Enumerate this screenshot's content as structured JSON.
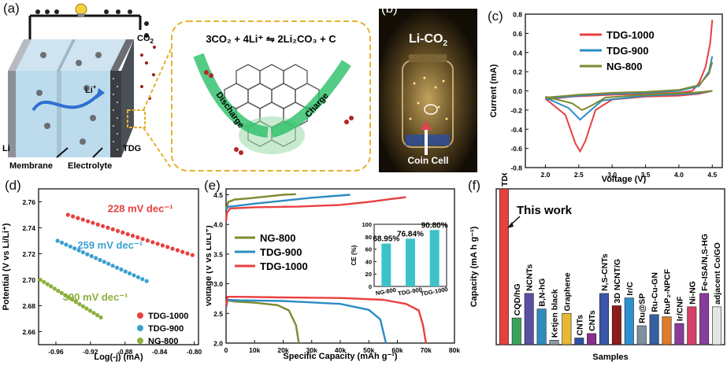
{
  "panels": {
    "a": {
      "label": "(a)",
      "labels": {
        "co2": "CO",
        "co2_sub": "2",
        "li_plus": "Li",
        "li_plus_sup": "+",
        "li": "Li",
        "tdg": "TDG",
        "membrane": "Membrane",
        "electrolyte": "Electrolyte"
      },
      "equation": "3CO₂ + 4Li⁺ ⇋ 2Li₂CO₃ + C",
      "discharge": "Discharge",
      "charge": "Charge"
    },
    "b": {
      "label": "(b)",
      "title": "Li-CO",
      "title_sub": "2",
      "caption": "Coin Cell"
    },
    "c": {
      "label": "(c)"
    },
    "d": {
      "label": "(d)"
    },
    "e": {
      "label": "(e)"
    },
    "f": {
      "label": "(f)"
    }
  },
  "chart_data": [
    {
      "id": "c",
      "type": "line",
      "title": "",
      "xlabel": "Voltage (V)",
      "ylabel": "Current (mA)",
      "xlim": [
        1.7,
        4.65
      ],
      "ylim": [
        -0.8,
        0.8
      ],
      "xticks": [
        "2.0",
        "2.5",
        "3.0",
        "3.5",
        "4.0",
        "4.5"
      ],
      "xtick_values": [
        2.0,
        2.5,
        3.0,
        3.5,
        4.0,
        4.5
      ],
      "yticks": [
        "-0.8",
        "-0.6",
        "-0.4",
        "-0.2",
        "0.0",
        "0.2",
        "0.4",
        "0.6",
        "0.8"
      ],
      "ytick_values": [
        -0.8,
        -0.6,
        -0.4,
        -0.2,
        0.0,
        0.2,
        0.4,
        0.6,
        0.8
      ],
      "legend": "top-right",
      "series": [
        {
          "name": "TDG-1000",
          "color": "#e8403f",
          "upper": [
            [
              2.0,
              -0.09
            ],
            [
              2.4,
              -0.06
            ],
            [
              3.0,
              -0.04
            ],
            [
              3.5,
              -0.03
            ],
            [
              4.0,
              -0.02
            ],
            [
              4.2,
              0.0
            ],
            [
              4.3,
              0.08
            ],
            [
              4.4,
              0.25
            ],
            [
              4.47,
              0.5
            ],
            [
              4.5,
              0.74
            ]
          ],
          "lower": [
            [
              2.0,
              -0.08
            ],
            [
              2.3,
              -0.25
            ],
            [
              2.45,
              -0.55
            ],
            [
              2.52,
              -0.63
            ],
            [
              2.6,
              -0.52
            ],
            [
              2.75,
              -0.2
            ],
            [
              3.0,
              -0.09
            ],
            [
              3.5,
              -0.06
            ],
            [
              4.0,
              -0.05
            ],
            [
              4.3,
              -0.03
            ],
            [
              4.5,
              0.0
            ]
          ]
        },
        {
          "name": "TDG-900",
          "color": "#2b8cc4",
          "upper": [
            [
              2.0,
              -0.08
            ],
            [
              2.5,
              -0.05
            ],
            [
              3.0,
              -0.03
            ],
            [
              3.5,
              -0.02
            ],
            [
              4.0,
              0.0
            ],
            [
              4.3,
              0.05
            ],
            [
              4.45,
              0.2
            ],
            [
              4.5,
              0.36
            ]
          ],
          "lower": [
            [
              2.0,
              -0.07
            ],
            [
              2.35,
              -0.18
            ],
            [
              2.52,
              -0.3
            ],
            [
              2.65,
              -0.22
            ],
            [
              2.85,
              -0.1
            ],
            [
              3.5,
              -0.05
            ],
            [
              4.2,
              -0.03
            ],
            [
              4.5,
              0.0
            ]
          ]
        },
        {
          "name": "NG-800",
          "color": "#7d8a2e",
          "upper": [
            [
              2.0,
              -0.07
            ],
            [
              2.5,
              -0.04
            ],
            [
              3.0,
              -0.02
            ],
            [
              3.5,
              -0.01
            ],
            [
              4.0,
              0.01
            ],
            [
              4.3,
              0.06
            ],
            [
              4.45,
              0.18
            ],
            [
              4.5,
              0.3
            ]
          ],
          "lower": [
            [
              2.0,
              -0.06
            ],
            [
              2.4,
              -0.13
            ],
            [
              2.55,
              -0.2
            ],
            [
              2.7,
              -0.15
            ],
            [
              2.9,
              -0.07
            ],
            [
              3.5,
              -0.04
            ],
            [
              4.2,
              -0.02
            ],
            [
              4.5,
              0.0
            ]
          ]
        }
      ]
    },
    {
      "id": "d",
      "type": "scatter",
      "title": "",
      "xlabel": "Log(-j) (mA)",
      "ylabel": "Potential (V vs Li/Li⁺)",
      "xlim": [
        -0.98,
        -0.795
      ],
      "ylim": [
        2.65,
        2.77
      ],
      "xticks": [
        "-0.96",
        "-0.92",
        "-0.88",
        "-0.84",
        "-0.80"
      ],
      "xtick_values": [
        -0.96,
        -0.92,
        -0.88,
        -0.84,
        -0.8
      ],
      "yticks": [
        "2.66",
        "2.68",
        "2.70",
        "2.72",
        "2.74",
        "2.76"
      ],
      "ytick_values": [
        2.66,
        2.68,
        2.7,
        2.72,
        2.74,
        2.76
      ],
      "legend": "bottom-right",
      "annotations": [
        "228 mV dec⁻¹",
        "259 mV dec⁻¹",
        "390 mV dec⁻¹"
      ],
      "series": [
        {
          "name": "TDG-1000",
          "color": "#e8403f",
          "x_start": -0.946,
          "x_end": -0.802,
          "y_start": 2.75,
          "y_end": 2.719,
          "n": 26
        },
        {
          "name": "TDG-900",
          "color": "#3aa0d0",
          "x_start": -0.958,
          "x_end": -0.855,
          "y_start": 2.73,
          "y_end": 2.699,
          "n": 22
        },
        {
          "name": "NG-800",
          "color": "#8bb03a",
          "x_start": -0.978,
          "x_end": -0.908,
          "y_start": 2.7,
          "y_end": 2.671,
          "n": 18
        }
      ]
    },
    {
      "id": "e",
      "type": "line",
      "title": "",
      "xlabel": "Specific Capacity (mAh g⁻¹)",
      "ylabel": "Voltage (V vs Li/Li⁺)",
      "xlim": [
        0,
        80000
      ],
      "ylim": [
        2.0,
        4.6
      ],
      "xticks": [
        "0",
        "10k",
        "20k",
        "30k",
        "40k",
        "50k",
        "60k",
        "70k",
        "80k"
      ],
      "xtick_values": [
        0,
        10000,
        20000,
        30000,
        40000,
        50000,
        60000,
        70000,
        80000
      ],
      "yticks": [
        "2.0",
        "2.5",
        "3.0",
        "3.5",
        "4.0",
        "4.5"
      ],
      "ytick_values": [
        2.0,
        2.5,
        3.0,
        3.5,
        4.0,
        4.5
      ],
      "legend": "center-left",
      "series": [
        {
          "name": "NG-800",
          "color": "#7d8a2e",
          "discharge": [
            [
              0,
              2.6
            ],
            [
              500,
              2.72
            ],
            [
              3000,
              2.7
            ],
            [
              10000,
              2.68
            ],
            [
              18000,
              2.64
            ],
            [
              22000,
              2.55
            ],
            [
              24500,
              2.3
            ],
            [
              25500,
              2.0
            ]
          ],
          "charge": [
            [
              0,
              4.25
            ],
            [
              800,
              4.38
            ],
            [
              3000,
              4.42
            ],
            [
              8000,
              4.44
            ],
            [
              14000,
              4.47
            ],
            [
              20000,
              4.5
            ],
            [
              24500,
              4.51
            ]
          ]
        },
        {
          "name": "TDG-900",
          "color": "#2b8cc4",
          "discharge": [
            [
              0,
              2.6
            ],
            [
              500,
              2.73
            ],
            [
              5000,
              2.72
            ],
            [
              20000,
              2.71
            ],
            [
              40000,
              2.66
            ],
            [
              50000,
              2.56
            ],
            [
              54000,
              2.4
            ],
            [
              56000,
              2.0
            ]
          ],
          "charge": [
            [
              0,
              4.25
            ],
            [
              800,
              4.3
            ],
            [
              3000,
              4.31
            ],
            [
              10000,
              4.35
            ],
            [
              20000,
              4.4
            ],
            [
              30000,
              4.45
            ],
            [
              38000,
              4.48
            ],
            [
              43500,
              4.5
            ]
          ]
        },
        {
          "name": "TDG-1000",
          "color": "#e8403f",
          "discharge": [
            [
              0,
              2.62
            ],
            [
              500,
              2.78
            ],
            [
              5000,
              2.78
            ],
            [
              20000,
              2.77
            ],
            [
              40000,
              2.76
            ],
            [
              55000,
              2.73
            ],
            [
              63000,
              2.66
            ],
            [
              67500,
              2.55
            ],
            [
              69000,
              2.3
            ],
            [
              70000,
              2.0
            ]
          ],
          "charge": [
            [
              0,
              4.05
            ],
            [
              300,
              4.2
            ],
            [
              1500,
              4.27
            ],
            [
              10000,
              4.29
            ],
            [
              25000,
              4.3
            ],
            [
              40000,
              4.33
            ],
            [
              50000,
              4.38
            ],
            [
              58000,
              4.43
            ],
            [
              63000,
              4.46
            ]
          ]
        }
      ],
      "inset": {
        "type": "bar",
        "ylabel": "CE (%)",
        "ylim": [
          0,
          100
        ],
        "yticks": [
          "0",
          "20",
          "40",
          "60",
          "80",
          "100"
        ],
        "ytick_values": [
          0,
          20,
          40,
          60,
          80,
          100
        ],
        "categories": [
          "NG-800",
          "TDG-900",
          "TDG-1000"
        ],
        "values": [
          68.95,
          76.84,
          90.8
        ],
        "labels": [
          "68.95%",
          "76.84%",
          "90.80%"
        ],
        "color": "#3cc3c9"
      }
    },
    {
      "id": "f",
      "type": "bar",
      "title": "",
      "xlabel": "Samples",
      "ylabel": "Capacity (mA h g⁻¹)",
      "ylim": [
        0,
        70000
      ],
      "yticks": [
        "0",
        "10k",
        "20k",
        "30k",
        "40k",
        "50k",
        "60k",
        "70k"
      ],
      "ytick_values": [
        0,
        10000,
        20000,
        30000,
        40000,
        50000,
        60000,
        70000
      ],
      "annotation": "This work",
      "categories": [
        "TDG",
        "CQD/hG",
        "NCNTs",
        "B,N-hG",
        "Ketjen black",
        "Graphene",
        "CNTs",
        "CNTs",
        "N,S-CNTs",
        "3D NCNT/G",
        "Ir/C",
        "Ru@SP",
        "Ru-Cu-GN",
        "RuP₂-NPCF",
        "Ir/CNF",
        "Ni-NG",
        "Fe-ISA/N,S-HG",
        "adjacent Co/GO"
      ],
      "values": [
        70000,
        12000,
        23000,
        16000,
        2000,
        14000,
        3000,
        5000,
        23000,
        17500,
        21000,
        8500,
        13500,
        12500,
        9500,
        17000,
        23000,
        17000
      ],
      "colors": [
        "#e8403f",
        "#3aa35b",
        "#5b4fa3",
        "#2f8bc0",
        "#8e9aa8",
        "#e6b833",
        "#2e4fa6",
        "#8a2f8e",
        "#3a56a8",
        "#8c1b1b",
        "#2e8fcf",
        "#7f8f9f",
        "#355fa0",
        "#e07a2c",
        "#8a3c9a",
        "#d63f67",
        "#8a3c9a",
        "#e5e5e5"
      ]
    }
  ]
}
